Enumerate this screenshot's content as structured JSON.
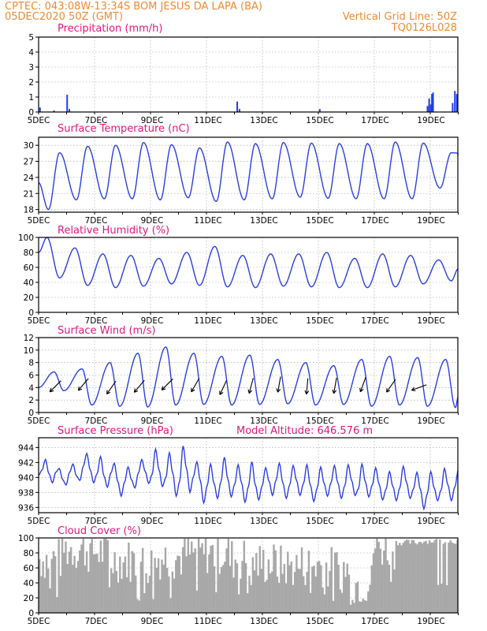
{
  "header": {
    "line1_left": "CPTEC:   043:08W-13:34S  BOM JESUS DA LAPA (BA)",
    "line2_left": "05DEC2020 50Z (GMT)",
    "line2_right": "Vertical Grid Line: 50Z",
    "line3_right": "TQ0126L028"
  },
  "colors": {
    "header": "#f08a30",
    "panel_title": "#e0187a",
    "series_line": "#2a3fe0",
    "precip_bar": "#1f3ee8",
    "cloud_bar": "#a8a8a8"
  },
  "x_axis": {
    "labels": [
      "5DEC",
      "7DEC",
      "9DEC",
      "11DEC",
      "13DEC",
      "15DEC",
      "17DEC",
      "19DEC"
    ]
  },
  "chart_data": [
    {
      "id": "precip",
      "type": "bar",
      "title": "Precipitation (mm/h)",
      "ylim": [
        0,
        5
      ],
      "yticks": [
        0,
        1,
        2,
        3,
        4,
        5
      ],
      "grid": true,
      "spikes": [
        {
          "day": 0.05,
          "value": 0.3
        },
        {
          "day": 0.55,
          "value": 0.1
        },
        {
          "day": 1.02,
          "value": 1.15
        },
        {
          "day": 1.1,
          "value": 0.2
        },
        {
          "day": 7.1,
          "value": 0.7
        },
        {
          "day": 7.18,
          "value": 0.2
        },
        {
          "day": 10.05,
          "value": 0.2
        },
        {
          "day": 13.9,
          "value": 0.4
        },
        {
          "day": 13.96,
          "value": 0.9
        },
        {
          "day": 14.02,
          "value": 0.5
        },
        {
          "day": 14.06,
          "value": 1.2
        },
        {
          "day": 14.1,
          "value": 1.3
        },
        {
          "day": 14.8,
          "value": 0.6
        },
        {
          "day": 14.88,
          "value": 1.4
        },
        {
          "day": 14.95,
          "value": 1.2
        }
      ]
    },
    {
      "id": "temp",
      "type": "line",
      "title": "Surface Temperature (nC)",
      "ylim": [
        17.5,
        31.5
      ],
      "yticks": [
        18,
        21,
        24,
        27,
        30
      ],
      "grid": true,
      "maxima": [
        28.6,
        29.8,
        30.0,
        30.5,
        30.1,
        29.5,
        30.6,
        30.3,
        30.5,
        30.4,
        30.3,
        30.3,
        30.6,
        30.4,
        28.6,
        28.0
      ],
      "minima": [
        18.0,
        19.8,
        20.0,
        20.0,
        19.8,
        20.2,
        19.5,
        19.8,
        20.0,
        20.3,
        20.1,
        20.0,
        20.0,
        20.0,
        22.0
      ]
    },
    {
      "id": "rh",
      "type": "line",
      "title": "Relative Humidity (%)",
      "ylim": [
        0,
        100
      ],
      "yticks": [
        0,
        20,
        40,
        60,
        80,
        100
      ],
      "grid": true,
      "maxima": [
        100,
        86,
        78,
        76,
        72,
        80,
        88,
        76,
        78,
        78,
        80,
        72,
        78,
        76,
        70
      ],
      "minima": [
        46,
        36,
        33,
        35,
        38,
        36,
        34,
        33,
        35,
        34,
        33,
        33,
        34,
        38,
        42
      ]
    },
    {
      "id": "wind",
      "type": "line",
      "title": "Surface Wind (m/s)",
      "ylim": [
        0,
        12
      ],
      "yticks": [
        0,
        2,
        4,
        6,
        8,
        10,
        12
      ],
      "grid": true,
      "maxima": [
        6.5,
        7.0,
        8.0,
        9.5,
        10.5,
        9.5,
        9.0,
        9.2,
        8.5,
        8.0,
        7.5,
        8.5,
        9.0,
        8.8,
        8.5
      ],
      "minima": [
        3.5,
        1.2,
        1.0,
        0.9,
        1.2,
        1.3,
        1.2,
        1.3,
        1.4,
        1.2,
        1.3,
        1.0,
        1.2,
        1.0,
        0.8
      ],
      "arrows": [
        {
          "day": 0.6,
          "speed": 4.2,
          "dir_deg": 45
        },
        {
          "day": 1.6,
          "speed": 4.5,
          "dir_deg": 50
        },
        {
          "day": 2.6,
          "speed": 4.0,
          "dir_deg": 55
        },
        {
          "day": 3.6,
          "speed": 4.2,
          "dir_deg": 50
        },
        {
          "day": 4.6,
          "speed": 4.5,
          "dir_deg": 45
        },
        {
          "day": 5.6,
          "speed": 4.4,
          "dir_deg": 60
        },
        {
          "day": 6.6,
          "speed": 4.0,
          "dir_deg": 65
        },
        {
          "day": 7.6,
          "speed": 4.3,
          "dir_deg": 75
        },
        {
          "day": 8.6,
          "speed": 4.5,
          "dir_deg": 80
        },
        {
          "day": 9.6,
          "speed": 4.2,
          "dir_deg": 85
        },
        {
          "day": 10.6,
          "speed": 4.3,
          "dir_deg": 80
        },
        {
          "day": 11.6,
          "speed": 4.5,
          "dir_deg": 70
        },
        {
          "day": 12.6,
          "speed": 4.3,
          "dir_deg": 55
        },
        {
          "day": 13.6,
          "speed": 4.0,
          "dir_deg": 20
        }
      ]
    },
    {
      "id": "pressure",
      "type": "line",
      "title": "Surface Pressure (hPa)",
      "subtitle": "Model Altitude: 646.576 m",
      "ylim": [
        935.3,
        945.3
      ],
      "yticks": [
        936,
        938,
        940,
        942,
        944
      ],
      "grid": true,
      "values": [
        940.3,
        941.0,
        942.4,
        940.5,
        939.3,
        940.7,
        941.2,
        939.7,
        939.0,
        940.7,
        941.8,
        940.2,
        939.6,
        941.5,
        943.2,
        941.0,
        939.3,
        940.5,
        942.8,
        940.2,
        938.7,
        940.6,
        941.9,
        939.5,
        937.5,
        939.4,
        941.4,
        939.7,
        938.6,
        940.6,
        942.4,
        940.8,
        939.2,
        940.4,
        943.8,
        941.0,
        938.8,
        940.0,
        943.3,
        940.6,
        937.5,
        939.5,
        944.2,
        941.2,
        938.0,
        940.1,
        942.1,
        939.6,
        936.6,
        938.9,
        941.8,
        939.2,
        937.2,
        939.4,
        942.7,
        939.8,
        937.4,
        939.1,
        941.7,
        939.3,
        936.7,
        938.8,
        942.1,
        939.0,
        937.0,
        938.9,
        941.3,
        939.5,
        937.6,
        939.6,
        941.9,
        939.3,
        937.2,
        939.0,
        941.6,
        939.6,
        937.6,
        939.2,
        941.7,
        939.0,
        936.8,
        938.6,
        941.4,
        939.2,
        937.5,
        939.3,
        941.6,
        939.3,
        937.2,
        938.9,
        941.7,
        939.6,
        937.6,
        938.5,
        941.8,
        939.4,
        937.4,
        939.0,
        941.3,
        939.1,
        937.0,
        938.4,
        940.8,
        938.8,
        936.9,
        938.6,
        941.5,
        939.3,
        937.2,
        938.5,
        940.7,
        938.4,
        935.8,
        937.8,
        940.8,
        938.6,
        936.9,
        938.3,
        941.2,
        939.0,
        936.9,
        938.7,
        940.9
      ]
    },
    {
      "id": "cloud",
      "type": "bar",
      "title": "Cloud Cover (%)",
      "ylim": [
        0,
        100
      ],
      "yticks": [
        0,
        20,
        40,
        60,
        80,
        100
      ],
      "grid": true,
      "period_means": [
        72,
        85,
        82,
        70,
        66,
        74,
        78,
        80,
        72,
        66,
        62,
        64,
        60,
        40,
        88,
        94,
        96,
        96
      ],
      "period_span_days": 0.85
    }
  ]
}
